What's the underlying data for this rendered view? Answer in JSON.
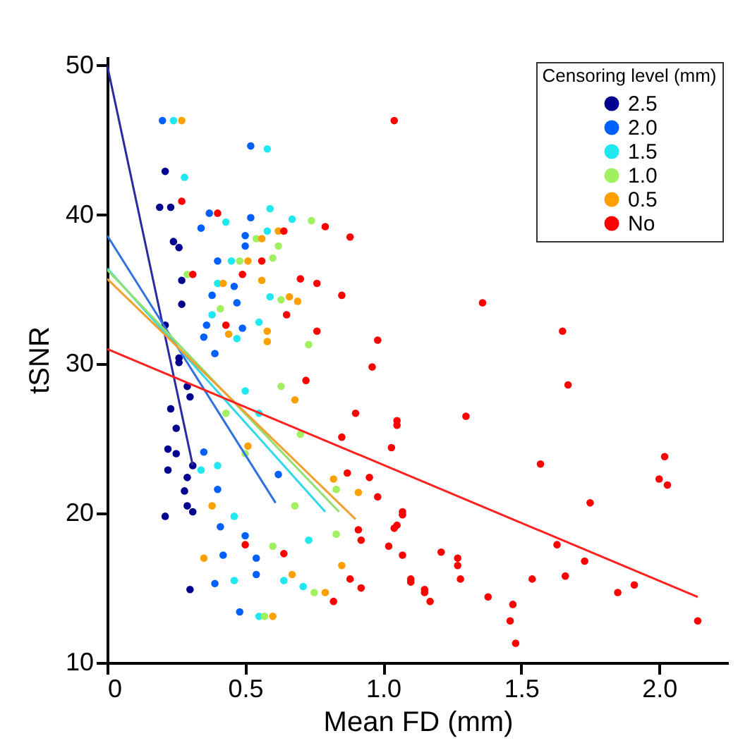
{
  "chart_data": {
    "type": "scatter",
    "xlabel": "Mean FD (mm)",
    "ylabel": "tSNR",
    "legend_title": "Censoring level (mm)",
    "legend": "top right",
    "marker": "circle",
    "grid": false,
    "xlim": [
      0,
      2.25
    ],
    "ylim": [
      10,
      50.6
    ],
    "xticks": [
      0,
      0.5,
      {
        "value": 1,
        "label": "1.0"
      },
      1.5,
      {
        "value": 2,
        "label": "2.0"
      }
    ],
    "yticks": [
      10,
      20,
      30,
      40,
      50
    ],
    "series": [
      {
        "name": "2.5",
        "color": "#00008f",
        "x": [
          0.21,
          0.19,
          0.23,
          0.24,
          0.26,
          0.27,
          0.27,
          0.21,
          0.26,
          0.26,
          0.29,
          0.3,
          0.23,
          0.25,
          0.22,
          0.25,
          0.31,
          0.22,
          0.29,
          0.28,
          0.29,
          0.21,
          0.31,
          0.3
        ],
        "values": [
          42.9,
          40.5,
          40.5,
          38.2,
          37.8,
          35.6,
          34.0,
          32.6,
          30.4,
          30.1,
          28.5,
          27.8,
          27.0,
          25.7,
          24.3,
          24.0,
          23.2,
          22.9,
          22.4,
          21.5,
          20.5,
          19.8,
          20.1,
          14.9
        ]
      },
      {
        "name": "2.0",
        "color": "#0060ff",
        "x": [
          0.2,
          0.52,
          0.37,
          0.34,
          0.52,
          0.5,
          0.5,
          0.4,
          0.46,
          0.38,
          0.47,
          0.36,
          0.35,
          0.49,
          0.39,
          0.35,
          0.4,
          0.41,
          0.5,
          0.54,
          0.39,
          0.48,
          0.42,
          0.62,
          0.54
        ],
        "values": [
          46.3,
          44.6,
          40.1,
          39.1,
          39.8,
          38.6,
          37.9,
          36.9,
          35.2,
          34.6,
          34.1,
          32.6,
          31.8,
          32.4,
          30.7,
          24.1,
          21.6,
          19.1,
          18.5,
          17.0,
          15.3,
          13.4,
          17.2,
          22.6,
          15.9
        ]
      },
      {
        "name": "1.5",
        "color": "#20e8f0",
        "x": [
          0.24,
          0.28,
          0.58,
          0.59,
          0.43,
          0.67,
          0.58,
          0.45,
          0.4,
          0.59,
          0.38,
          0.47,
          0.55,
          0.5,
          0.55,
          0.4,
          0.46,
          0.46,
          0.55,
          0.73,
          0.64,
          0.34,
          0.71
        ],
        "values": [
          46.3,
          42.5,
          44.4,
          40.4,
          39.5,
          39.7,
          38.9,
          36.9,
          35.4,
          34.5,
          33.3,
          31.7,
          32.8,
          28.2,
          26.7,
          23.2,
          19.8,
          15.5,
          13.1,
          18.2,
          15.5,
          22.9,
          15.1
        ]
      },
      {
        "name": "1.0",
        "color": "#a0f060",
        "x": [
          0.74,
          0.62,
          0.6,
          0.54,
          0.48,
          0.63,
          0.41,
          0.73,
          0.29,
          0.57,
          0.63,
          0.5,
          0.7,
          0.83,
          0.75,
          0.6,
          0.43,
          0.83,
          0.68
        ],
        "values": [
          39.6,
          37.9,
          37.1,
          38.4,
          36.9,
          34.3,
          33.7,
          31.3,
          36.0,
          13.1,
          28.5,
          24.0,
          25.3,
          21.6,
          14.7,
          17.8,
          26.7,
          18.6,
          20.5
        ]
      },
      {
        "name": "0.5",
        "color": "#ffa000",
        "x": [
          0.27,
          0.62,
          0.56,
          0.51,
          0.56,
          0.66,
          0.69,
          0.42,
          0.58,
          0.58,
          0.44,
          0.35,
          0.6,
          0.68,
          0.82,
          0.91,
          0.79,
          0.85,
          0.38,
          0.67,
          0.51
        ],
        "values": [
          46.3,
          38.9,
          38.4,
          36.9,
          35.6,
          34.5,
          34.2,
          35.4,
          32.2,
          31.5,
          32.0,
          17.0,
          13.1,
          27.6,
          22.3,
          21.4,
          14.7,
          16.5,
          20.5,
          15.9,
          24.5
        ]
      },
      {
        "name": "No",
        "color": "#ff0000",
        "x": [
          1.04,
          0.27,
          0.4,
          0.79,
          0.88,
          0.64,
          0.56,
          0.49,
          0.7,
          0.76,
          0.85,
          0.65,
          0.76,
          0.98,
          0.31,
          0.43,
          0.96,
          1.05,
          1.03,
          0.9,
          0.85,
          0.87,
          0.95,
          0.98,
          1.07,
          1.05,
          0.91,
          0.92,
          1.02,
          1.07,
          0.88,
          0.92,
          0.82,
          1.15,
          1.1,
          0.64,
          0.5,
          0.72,
          1.36,
          1.65,
          1.67,
          1.3,
          1.05,
          1.57,
          2.02,
          2.0,
          2.03,
          1.75,
          1.07,
          1.04,
          1.63,
          1.21,
          1.27,
          1.27,
          1.73,
          1.28,
          1.54,
          1.66,
          1.1,
          1.15,
          1.17,
          1.38,
          1.85,
          1.91,
          1.47,
          1.46,
          1.48,
          2.14
        ],
        "values": [
          46.3,
          40.9,
          40.1,
          39.2,
          38.5,
          38.9,
          36.9,
          36.0,
          35.7,
          35.4,
          34.6,
          33.3,
          32.2,
          31.6,
          36.0,
          32.6,
          29.8,
          26.2,
          24.4,
          26.7,
          25.1,
          22.7,
          22.4,
          21.1,
          20.1,
          19.2,
          18.9,
          18.2,
          17.8,
          17.2,
          15.6,
          15.0,
          14.1,
          14.9,
          15.6,
          17.3,
          17.9,
          28.9,
          34.1,
          32.2,
          28.6,
          26.5,
          25.9,
          23.3,
          23.8,
          22.3,
          21.9,
          20.7,
          19.9,
          19.0,
          17.9,
          17.4,
          17.0,
          16.5,
          16.8,
          15.6,
          15.6,
          15.8,
          15.4,
          14.7,
          14.1,
          14.4,
          14.7,
          15.2,
          13.9,
          12.8,
          11.3,
          12.8
        ]
      },
      {
        "type": "line",
        "marker": "none",
        "color": "#2a2aa0",
        "x": [
          0,
          0.31
        ],
        "values": [
          50.0,
          23.2
        ]
      },
      {
        "type": "line",
        "marker": "none",
        "color": "#3070e0",
        "x": [
          0,
          0.61
        ],
        "values": [
          38.6,
          20.7
        ]
      },
      {
        "type": "line",
        "marker": "none",
        "color": "#30d8e8",
        "x": [
          0,
          0.79
        ],
        "values": [
          36.4,
          20.1
        ]
      },
      {
        "type": "line",
        "marker": "none",
        "color": "#90e070",
        "x": [
          0,
          0.84
        ],
        "values": [
          36.3,
          20.1
        ]
      },
      {
        "type": "line",
        "marker": "none",
        "color": "#f0a030",
        "x": [
          0,
          0.9
        ],
        "values": [
          35.7,
          19.6
        ]
      },
      {
        "type": "line",
        "marker": "none",
        "color": "#ff2020",
        "x": [
          0,
          2.14
        ],
        "values": [
          31.0,
          14.4
        ]
      }
    ]
  }
}
